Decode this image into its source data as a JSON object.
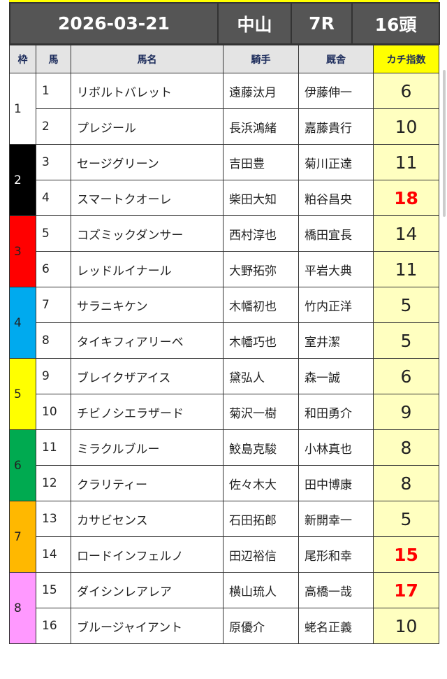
{
  "header": {
    "date": "2026-03-21",
    "venue": "中山",
    "race": "7R",
    "runners": "16頭"
  },
  "columns": {
    "waku": "枠",
    "umaban": "馬",
    "name": "馬名",
    "jockey": "騎手",
    "trainer": "厩舎",
    "index": "カチ指数"
  },
  "colors": {
    "highlight": "#ff0000",
    "index_bg": "#ffffc0"
  },
  "waku_colors": [
    "#ffffff",
    "#000000",
    "#ff0000",
    "#00aaee",
    "#ffff00",
    "#00aa50",
    "#ffb800",
    "#ff99ff"
  ],
  "waku_text_colors": [
    "#222222",
    "#ffffff",
    "#222222",
    "#222222",
    "#222222",
    "#222222",
    "#222222",
    "#222222"
  ],
  "waku_labels": [
    "1",
    "2",
    "3",
    "4",
    "5",
    "6",
    "7",
    "8"
  ],
  "rows": [
    {
      "umaban": "1",
      "name": "リボルトバレット",
      "jockey": "遠藤汰月",
      "trainer": "伊藤伸一",
      "index": "6",
      "hot": false
    },
    {
      "umaban": "2",
      "name": "プレジール",
      "jockey": "長浜鴻緒",
      "trainer": "嘉藤貴行",
      "index": "10",
      "hot": false
    },
    {
      "umaban": "3",
      "name": "セージグリーン",
      "jockey": "吉田豊",
      "trainer": "菊川正達",
      "index": "11",
      "hot": false
    },
    {
      "umaban": "4",
      "name": "スマートクオーレ",
      "jockey": "柴田大知",
      "trainer": "粕谷昌央",
      "index": "18",
      "hot": true
    },
    {
      "umaban": "5",
      "name": "コズミックダンサー",
      "jockey": "西村淳也",
      "trainer": "橋田宜長",
      "index": "14",
      "hot": false
    },
    {
      "umaban": "6",
      "name": "レッドルイナール",
      "jockey": "大野拓弥",
      "trainer": "平岩大典",
      "index": "11",
      "hot": false
    },
    {
      "umaban": "7",
      "name": "サラニキケン",
      "jockey": "木幡初也",
      "trainer": "竹内正洋",
      "index": "5",
      "hot": false
    },
    {
      "umaban": "8",
      "name": "タイキフィアリーベ",
      "jockey": "木幡巧也",
      "trainer": "室井潔",
      "index": "5",
      "hot": false
    },
    {
      "umaban": "9",
      "name": "ブレイクザアイス",
      "jockey": "黛弘人",
      "trainer": "森一誠",
      "index": "6",
      "hot": false
    },
    {
      "umaban": "10",
      "name": "チビノシエラザード",
      "jockey": "菊沢一樹",
      "trainer": "和田勇介",
      "index": "9",
      "hot": false
    },
    {
      "umaban": "11",
      "name": "ミラクルブルー",
      "jockey": "鮫島克駿",
      "trainer": "小林真也",
      "index": "8",
      "hot": false
    },
    {
      "umaban": "12",
      "name": "クラリティー",
      "jockey": "佐々木大",
      "trainer": "田中博康",
      "index": "8",
      "hot": false
    },
    {
      "umaban": "13",
      "name": "カサビセンス",
      "jockey": "石田拓郎",
      "trainer": "新開幸一",
      "index": "5",
      "hot": false
    },
    {
      "umaban": "14",
      "name": "ロードインフェルノ",
      "jockey": "田辺裕信",
      "trainer": "尾形和幸",
      "index": "15",
      "hot": true
    },
    {
      "umaban": "15",
      "name": "ダイシンレアレア",
      "jockey": "横山琉人",
      "trainer": "高橋一哉",
      "index": "17",
      "hot": true
    },
    {
      "umaban": "16",
      "name": "ブルージャイアント",
      "jockey": "原優介",
      "trainer": "蛯名正義",
      "index": "10",
      "hot": false
    }
  ]
}
